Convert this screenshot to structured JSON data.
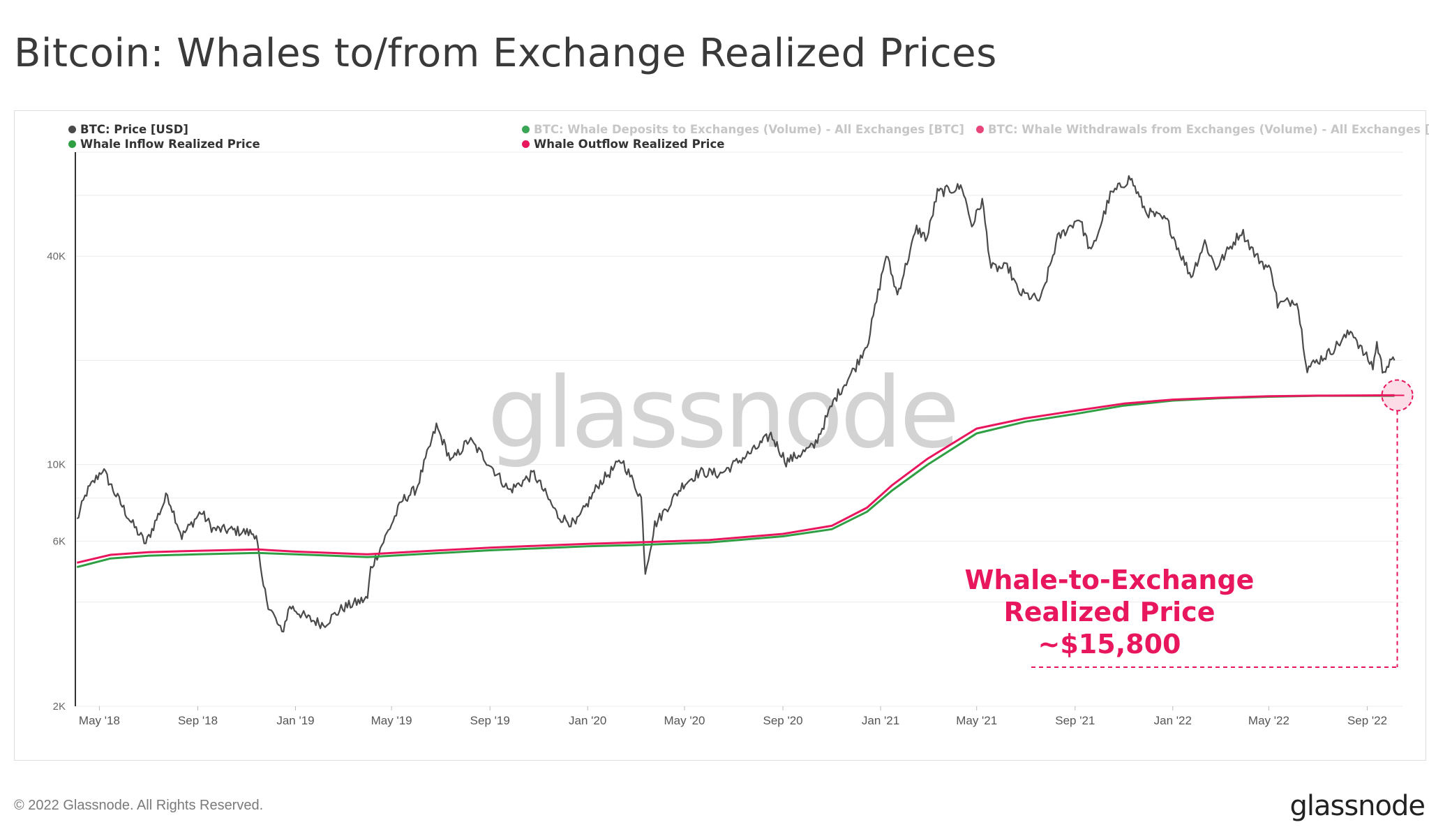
{
  "title": "Bitcoin: Whales to/from Exchange Realized Prices",
  "footer": "© 2022 Glassnode. All Rights Reserved.",
  "brand": "glassnode",
  "watermark": "glassnode",
  "legend": [
    {
      "label": "BTC: Price [USD]",
      "color": "#4a4a4a",
      "active": true
    },
    {
      "label": "BTC: Whale Deposits to Exchanges (Volume) - All Exchanges [BTC]",
      "color": "#3aa655",
      "active": false
    },
    {
      "label": "BTC: Whale Withdrawals from Exchanges (Volume) - All Exchanges [BTC]",
      "color": "#e8457a",
      "active": false
    },
    {
      "label": "Whale Inflow Realized Price",
      "color": "#2ea043",
      "active": true
    },
    {
      "label": "Whale Outflow Realized Price",
      "color": "#e8175d",
      "active": true
    }
  ],
  "annotation": {
    "lines": [
      "Whale-to-Exchange",
      "Realized Price",
      "~$15,800"
    ],
    "color": "#e8175d"
  },
  "chart_data": {
    "type": "line",
    "yscale": "log",
    "ylim": [
      2000,
      80000
    ],
    "xlim": [
      "2018-04-01",
      "2022-10-15"
    ],
    "x_ticks": [
      "May '18",
      "Sep '18",
      "Jan '19",
      "May '19",
      "Sep '19",
      "Jan '20",
      "May '20",
      "Sep '20",
      "Jan '21",
      "May '21",
      "Sep '21",
      "Jan '22",
      "May '22",
      "Sep '22"
    ],
    "x_tick_dates": [
      "2018-05-01",
      "2018-09-01",
      "2019-01-01",
      "2019-05-01",
      "2019-09-01",
      "2020-01-01",
      "2020-05-01",
      "2020-09-01",
      "2021-01-01",
      "2021-05-01",
      "2021-09-01",
      "2022-01-01",
      "2022-05-01",
      "2022-09-01"
    ],
    "y_ticks": [
      {
        "value": 2000,
        "label": "2K"
      },
      {
        "value": 6000,
        "label": "6K"
      },
      {
        "value": 10000,
        "label": "10K"
      },
      {
        "value": 40000,
        "label": "40K"
      }
    ],
    "y_grid": [
      2000,
      4000,
      6000,
      8000,
      10000,
      20000,
      40000,
      60000,
      80000
    ],
    "series": [
      {
        "name": "BTC: Price [USD]",
        "color": "#4a4a4a",
        "points": [
          [
            "2018-04-03",
            6900
          ],
          [
            "2018-04-15",
            8300
          ],
          [
            "2018-05-05",
            9700
          ],
          [
            "2018-05-20",
            8300
          ],
          [
            "2018-06-10",
            6800
          ],
          [
            "2018-06-28",
            5900
          ],
          [
            "2018-07-25",
            8200
          ],
          [
            "2018-08-12",
            6200
          ],
          [
            "2018-09-05",
            7300
          ],
          [
            "2018-09-20",
            6500
          ],
          [
            "2018-10-15",
            6450
          ],
          [
            "2018-11-13",
            6300
          ],
          [
            "2018-11-20",
            4600
          ],
          [
            "2018-11-28",
            3950
          ],
          [
            "2018-12-15",
            3250
          ],
          [
            "2018-12-25",
            3900
          ],
          [
            "2019-01-15",
            3600
          ],
          [
            "2019-02-05",
            3450
          ],
          [
            "2019-03-01",
            3850
          ],
          [
            "2019-04-01",
            4100
          ],
          [
            "2019-04-05",
            5000
          ],
          [
            "2019-05-15",
            7900
          ],
          [
            "2019-06-01",
            8500
          ],
          [
            "2019-06-26",
            12900
          ],
          [
            "2019-07-15",
            10200
          ],
          [
            "2019-08-06",
            11800
          ],
          [
            "2019-09-01",
            10000
          ],
          [
            "2019-09-25",
            8400
          ],
          [
            "2019-10-26",
            9400
          ],
          [
            "2019-11-25",
            7100
          ],
          [
            "2019-12-17",
            6700
          ],
          [
            "2020-01-15",
            8800
          ],
          [
            "2020-02-13",
            10300
          ],
          [
            "2020-03-08",
            8000
          ],
          [
            "2020-03-13",
            4900
          ],
          [
            "2020-03-25",
            6700
          ],
          [
            "2020-04-30",
            8800
          ],
          [
            "2020-05-20",
            9500
          ],
          [
            "2020-06-15",
            9400
          ],
          [
            "2020-07-27",
            11000
          ],
          [
            "2020-08-17",
            12200
          ],
          [
            "2020-09-05",
            10200
          ],
          [
            "2020-10-10",
            11300
          ],
          [
            "2020-11-05",
            15500
          ],
          [
            "2020-12-01",
            19200
          ],
          [
            "2020-12-17",
            23000
          ],
          [
            "2021-01-08",
            40500
          ],
          [
            "2021-01-22",
            31000
          ],
          [
            "2021-02-15",
            48000
          ],
          [
            "2021-02-28",
            45000
          ],
          [
            "2021-03-13",
            61000
          ],
          [
            "2021-04-13",
            63500
          ],
          [
            "2021-04-25",
            49000
          ],
          [
            "2021-05-08",
            58000
          ],
          [
            "2021-05-19",
            37000
          ],
          [
            "2021-06-10",
            37000
          ],
          [
            "2021-06-22",
            31500
          ],
          [
            "2021-07-20",
            29800
          ],
          [
            "2021-08-10",
            45000
          ],
          [
            "2021-09-06",
            51800
          ],
          [
            "2021-09-21",
            40800
          ],
          [
            "2021-10-15",
            60000
          ],
          [
            "2021-11-09",
            67500
          ],
          [
            "2021-11-28",
            54000
          ],
          [
            "2021-12-25",
            50500
          ],
          [
            "2022-01-10",
            41000
          ],
          [
            "2022-01-24",
            35000
          ],
          [
            "2022-02-10",
            44000
          ],
          [
            "2022-02-24",
            37000
          ],
          [
            "2022-03-28",
            47400
          ],
          [
            "2022-04-15",
            40000
          ],
          [
            "2022-05-05",
            36000
          ],
          [
            "2022-05-12",
            29000
          ],
          [
            "2022-06-05",
            30000
          ],
          [
            "2022-06-15",
            21000
          ],
          [
            "2022-06-18",
            19000
          ],
          [
            "2022-07-15",
            21000
          ],
          [
            "2022-08-13",
            24400
          ],
          [
            "2022-08-25",
            21400
          ],
          [
            "2022-09-08",
            19200
          ],
          [
            "2022-09-13",
            22400
          ],
          [
            "2022-09-20",
            18800
          ],
          [
            "2022-10-05",
            20000
          ]
        ]
      },
      {
        "name": "Whale Inflow Realized Price",
        "color": "#2ea043",
        "points": [
          [
            "2018-04-03",
            5050
          ],
          [
            "2018-05-15",
            5350
          ],
          [
            "2018-07-01",
            5450
          ],
          [
            "2018-09-01",
            5500
          ],
          [
            "2018-11-15",
            5550
          ],
          [
            "2019-01-01",
            5500
          ],
          [
            "2019-04-01",
            5400
          ],
          [
            "2019-06-01",
            5500
          ],
          [
            "2019-09-01",
            5650
          ],
          [
            "2020-01-01",
            5800
          ],
          [
            "2020-03-01",
            5850
          ],
          [
            "2020-06-01",
            5950
          ],
          [
            "2020-09-01",
            6200
          ],
          [
            "2020-11-01",
            6500
          ],
          [
            "2020-12-15",
            7300
          ],
          [
            "2021-01-15",
            8400
          ],
          [
            "2021-03-01",
            10000
          ],
          [
            "2021-05-01",
            12300
          ],
          [
            "2021-07-01",
            13300
          ],
          [
            "2021-09-01",
            14000
          ],
          [
            "2021-11-01",
            14800
          ],
          [
            "2022-01-01",
            15300
          ],
          [
            "2022-03-01",
            15550
          ],
          [
            "2022-05-01",
            15700
          ],
          [
            "2022-07-01",
            15800
          ],
          [
            "2022-10-05",
            15800
          ]
        ]
      },
      {
        "name": "Whale Outflow Realized Price",
        "color": "#e8175d",
        "points": [
          [
            "2018-04-03",
            5200
          ],
          [
            "2018-05-15",
            5480
          ],
          [
            "2018-07-01",
            5580
          ],
          [
            "2018-09-01",
            5630
          ],
          [
            "2018-11-15",
            5680
          ],
          [
            "2019-01-01",
            5600
          ],
          [
            "2019-04-01",
            5500
          ],
          [
            "2019-06-01",
            5600
          ],
          [
            "2019-09-01",
            5750
          ],
          [
            "2020-01-01",
            5900
          ],
          [
            "2020-03-01",
            5950
          ],
          [
            "2020-06-01",
            6050
          ],
          [
            "2020-09-01",
            6300
          ],
          [
            "2020-11-01",
            6650
          ],
          [
            "2020-12-15",
            7500
          ],
          [
            "2021-01-15",
            8700
          ],
          [
            "2021-03-01",
            10400
          ],
          [
            "2021-05-01",
            12700
          ],
          [
            "2021-07-01",
            13600
          ],
          [
            "2021-09-01",
            14300
          ],
          [
            "2021-11-01",
            15000
          ],
          [
            "2022-01-01",
            15400
          ],
          [
            "2022-03-01",
            15600
          ],
          [
            "2022-05-01",
            15750
          ],
          [
            "2022-07-01",
            15820
          ],
          [
            "2022-10-05",
            15850
          ]
        ]
      }
    ]
  }
}
